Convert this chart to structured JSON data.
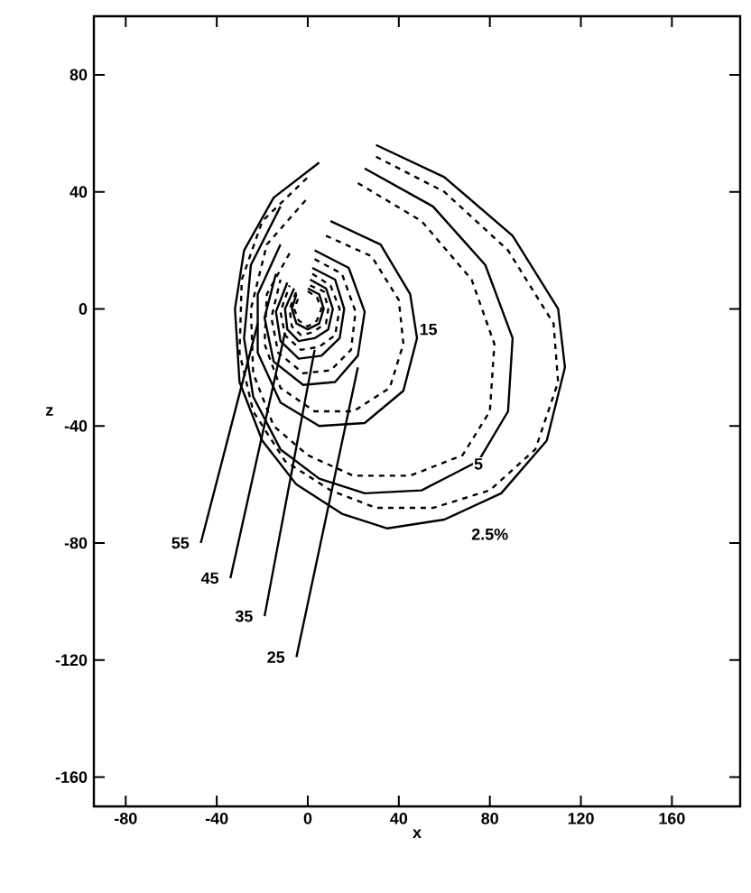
{
  "chart_data": {
    "type": "line",
    "xlabel": "x",
    "ylabel": "z",
    "xlim": [
      -94,
      190
    ],
    "ylim": [
      -170,
      100
    ],
    "xticks": [
      -80,
      -40,
      0,
      40,
      80,
      120,
      160
    ],
    "yticks": [
      -160,
      -120,
      -80,
      -40,
      0,
      40,
      80
    ],
    "grid": false,
    "series": [
      {
        "color": "#000000",
        "line_style": "solid",
        "x": [
          30,
          60,
          90,
          110,
          113,
          105,
          85,
          60,
          35,
          15,
          -5,
          -20,
          -30,
          -32,
          -28,
          -15,
          5
        ],
        "values": [
          56,
          45,
          25,
          0,
          -20,
          -45,
          -63,
          -72,
          -75,
          -70,
          -60,
          -45,
          -25,
          0,
          20,
          38,
          50
        ]
      },
      {
        "color": "#000000",
        "line_style": "dashed",
        "x": [
          30,
          60,
          88,
          108,
          110,
          100,
          80,
          55,
          30,
          10,
          -10,
          -24,
          -30,
          -29,
          -20,
          0
        ],
        "values": [
          52,
          40,
          20,
          -5,
          -25,
          -48,
          -62,
          -68,
          -68,
          -62,
          -52,
          -35,
          -15,
          10,
          30,
          45
        ]
      },
      {
        "color": "#000000",
        "line_style": "solid",
        "x": [
          25,
          55,
          78,
          90,
          88,
          75,
          50,
          25,
          5,
          -12,
          -24,
          -28,
          -25,
          -12
        ],
        "values": [
          48,
          35,
          15,
          -10,
          -35,
          -52,
          -62,
          -63,
          -58,
          -48,
          -30,
          -10,
          15,
          35
        ]
      },
      {
        "color": "#000000",
        "line_style": "dashed",
        "x": [
          22,
          50,
          72,
          82,
          80,
          68,
          45,
          20,
          0,
          -15,
          -24,
          -25,
          -18,
          0
        ],
        "values": [
          43,
          30,
          10,
          -12,
          -35,
          -50,
          -57,
          -57,
          -50,
          -40,
          -22,
          0,
          22,
          38
        ]
      },
      {
        "color": "#000000",
        "line_style": "solid",
        "x": [
          10,
          32,
          45,
          48,
          42,
          25,
          5,
          -12,
          -22,
          -22,
          -12
        ],
        "values": [
          30,
          22,
          5,
          -10,
          -28,
          -39,
          -40,
          -32,
          -15,
          5,
          22
        ]
      },
      {
        "color": "#000000",
        "line_style": "dashed",
        "x": [
          8,
          28,
          40,
          42,
          36,
          20,
          3,
          -12,
          -19,
          -18,
          -8
        ],
        "values": [
          25,
          18,
          3,
          -12,
          -27,
          -35,
          -35,
          -27,
          -12,
          5,
          19
        ]
      },
      {
        "color": "#000000",
        "line_style": "solid",
        "x": [
          3,
          18,
          25,
          22,
          12,
          -2,
          -15,
          -19,
          -14
        ],
        "values": [
          20,
          14,
          -1,
          -16,
          -25,
          -26,
          -18,
          -3,
          12
        ]
      },
      {
        "color": "#000000",
        "line_style": "dashed",
        "x": [
          3,
          15,
          21,
          19,
          10,
          -2,
          -13,
          -16,
          -12
        ],
        "values": [
          17,
          12,
          -1,
          -14,
          -21,
          -22,
          -15,
          -3,
          10
        ]
      },
      {
        "color": "#000000",
        "line_style": "solid",
        "x": [
          2,
          12,
          16,
          14,
          6,
          -4,
          -12,
          -14,
          -9
        ],
        "values": [
          14,
          10,
          0,
          -10,
          -16,
          -17,
          -11,
          -1,
          9
        ]
      },
      {
        "color": "#000000",
        "line_style": "dashed",
        "x": [
          2,
          10,
          14,
          12,
          5,
          -3,
          -10,
          -12,
          -8
        ],
        "values": [
          12,
          8,
          0,
          -9,
          -13,
          -14,
          -9,
          -1,
          8
        ]
      },
      {
        "color": "#000000",
        "line_style": "solid",
        "x": [
          1,
          8,
          11,
          9,
          3,
          -4,
          -9,
          -10,
          -6
        ],
        "values": [
          10,
          7,
          0,
          -7,
          -10,
          -11,
          -7,
          0,
          7
        ]
      },
      {
        "color": "#000000",
        "line_style": "dashed",
        "x": [
          1,
          7,
          9,
          8,
          2,
          -3,
          -7,
          -8,
          -5
        ],
        "values": [
          8,
          6,
          0,
          -5,
          -8,
          -9,
          -6,
          0,
          6
        ]
      },
      {
        "color": "#000000",
        "line_style": "solid",
        "x": [
          0,
          5,
          7,
          5,
          0,
          -5,
          -7,
          -5
        ],
        "values": [
          7,
          5,
          0,
          -5,
          -7,
          -5,
          0,
          5
        ]
      },
      {
        "color": "#000000",
        "line_style": "dashed",
        "x": [
          0,
          4,
          6,
          4,
          0,
          -4,
          -6,
          -4
        ],
        "values": [
          6,
          4,
          0,
          -4,
          -6,
          -4,
          0,
          4
        ]
      },
      {
        "color": "#000000",
        "line_style": "solid",
        "x": [
          -47,
          -22
        ],
        "values": [
          -80,
          -5
        ]
      },
      {
        "color": "#000000",
        "line_style": "solid",
        "x": [
          -34,
          -10
        ],
        "values": [
          -92,
          -8
        ]
      },
      {
        "color": "#000000",
        "line_style": "solid",
        "x": [
          -19,
          3
        ],
        "values": [
          -105,
          -14
        ]
      },
      {
        "color": "#000000",
        "line_style": "solid",
        "x": [
          -5,
          22
        ],
        "values": [
          -119,
          -20
        ]
      }
    ],
    "annotations": [
      {
        "text": "55",
        "x": -56,
        "y": -80
      },
      {
        "text": "45",
        "x": -43,
        "y": -92
      },
      {
        "text": "35",
        "x": -28,
        "y": -105
      },
      {
        "text": "25",
        "x": -14,
        "y": -119
      },
      {
        "text": "15",
        "x": 53,
        "y": -7
      },
      {
        "text": "5",
        "x": 75,
        "y": -53
      },
      {
        "text": "2.5%",
        "x": 80,
        "y": -77
      }
    ]
  }
}
